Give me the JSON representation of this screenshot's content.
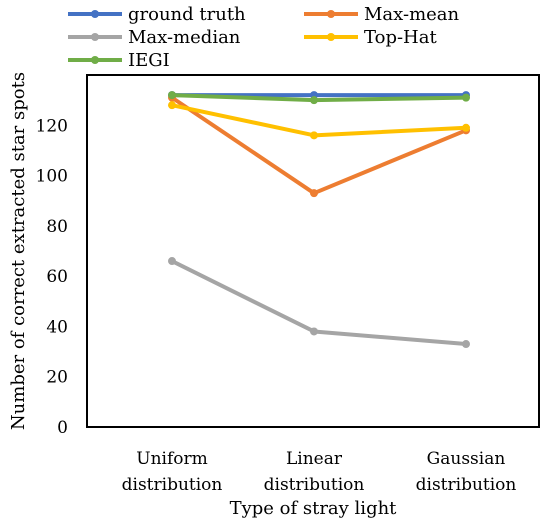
{
  "chart_data": {
    "type": "line",
    "xlabel": "Type of stray light",
    "ylabel": "Number of correct extracted star spots",
    "categories": [
      [
        "Uniform",
        "distribution"
      ],
      [
        "Linear",
        "distribution"
      ],
      [
        "Gaussian",
        "distribution"
      ]
    ],
    "ylim": [
      0,
      140
    ],
    "yticks": [
      0,
      20,
      40,
      60,
      80,
      100,
      120
    ],
    "grid": false,
    "legend_position": "top",
    "series": [
      {
        "name": "ground truth",
        "color": "#4472C4",
        "values": [
          132,
          132,
          132
        ]
      },
      {
        "name": "Max-mean",
        "color": "#ED7D31",
        "values": [
          131,
          93,
          118
        ]
      },
      {
        "name": "Max-median",
        "color": "#A5A5A5",
        "values": [
          66,
          38,
          33
        ]
      },
      {
        "name": "Top-Hat",
        "color": "#FFC000",
        "values": [
          128,
          116,
          119
        ]
      },
      {
        "name": "IEGI",
        "color": "#70AD47",
        "values": [
          132,
          130,
          131
        ]
      }
    ]
  }
}
